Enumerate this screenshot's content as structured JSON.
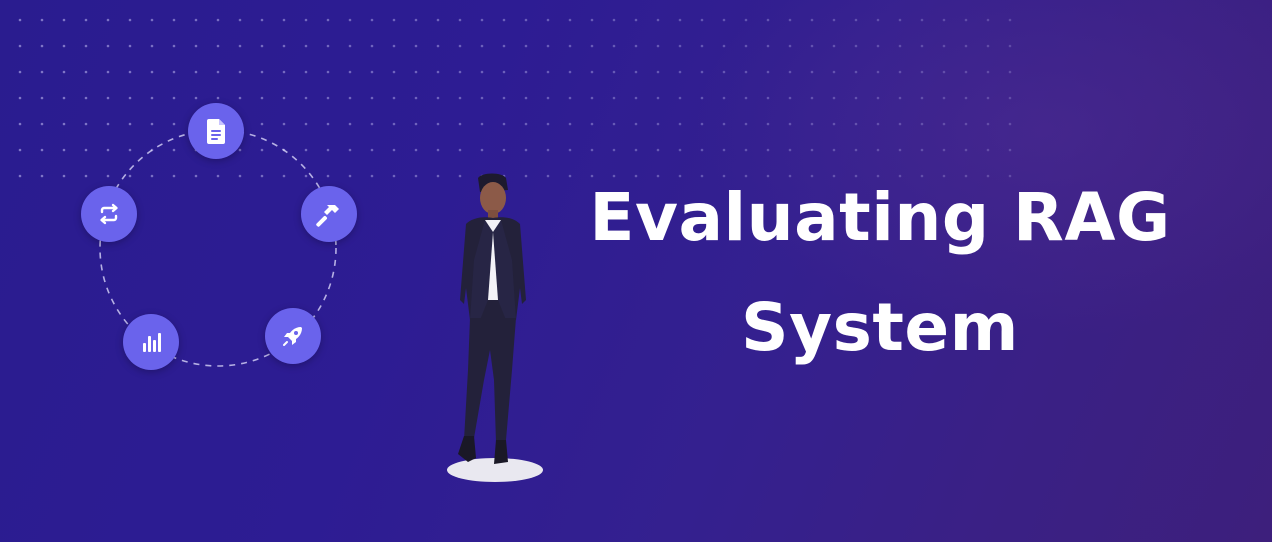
{
  "banner": {
    "title_line1": "Evaluating RAG",
    "title_line2": "System"
  },
  "colors": {
    "background_start": "#2a1c8f",
    "background_end": "#3d1f7c",
    "icon_circle": "#6a63ec",
    "title_text": "#ffffff"
  },
  "cycle": {
    "nodes": [
      {
        "icon": "document-icon"
      },
      {
        "icon": "hammer-icon"
      },
      {
        "icon": "rocket-icon"
      },
      {
        "icon": "bar-chart-icon"
      },
      {
        "icon": "refresh-icon"
      }
    ]
  }
}
